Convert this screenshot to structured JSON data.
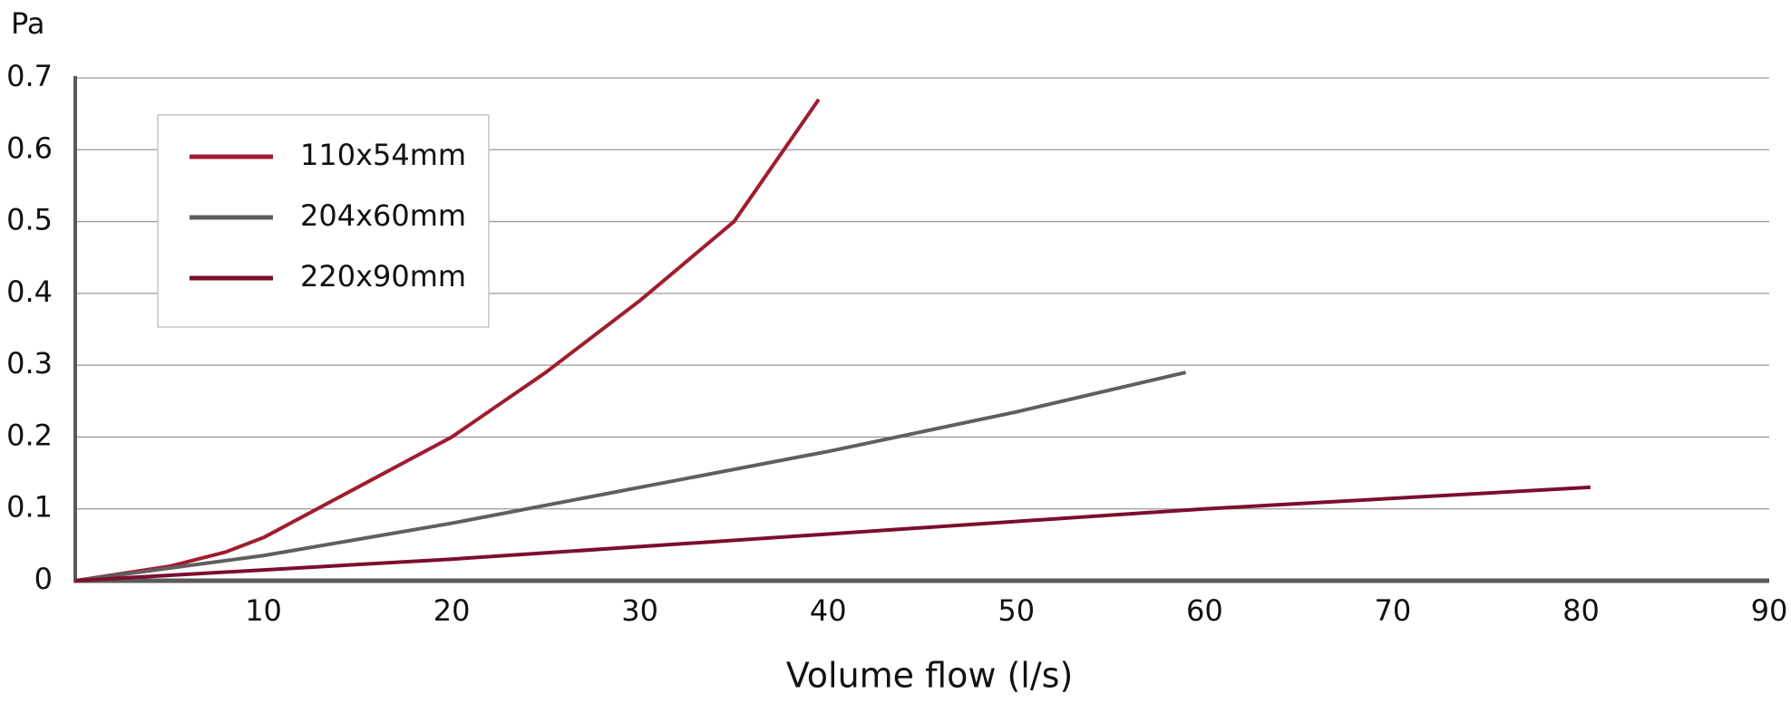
{
  "chart_data": {
    "type": "line",
    "y_label": "Pa",
    "x_label": "Volume flow (l/s)",
    "xlim": [
      0,
      90
    ],
    "xticks": [
      10,
      20,
      30,
      40,
      50,
      60,
      70,
      80,
      90
    ],
    "ylim": [
      0,
      0.7
    ],
    "yticks": [
      0,
      0.1,
      0.2,
      0.3,
      0.4,
      0.5,
      0.6,
      0.7
    ],
    "grid": true,
    "legend": "upper left",
    "series": [
      {
        "name": "110x54mm",
        "color": "#a01c2e",
        "x": [
          0,
          5,
          8,
          10,
          15,
          20,
          25,
          30,
          35,
          39.5
        ],
        "values": [
          0,
          0.02,
          0.04,
          0.06,
          0.13,
          0.2,
          0.29,
          0.39,
          0.5,
          0.67
        ]
      },
      {
        "name": "204x60mm",
        "color": "#5f5f5f",
        "x": [
          0,
          10,
          20,
          30,
          40,
          50,
          59
        ],
        "values": [
          0,
          0.035,
          0.08,
          0.13,
          0.18,
          0.235,
          0.29
        ]
      },
      {
        "name": "220x90mm",
        "color": "#7a0f2e",
        "x": [
          0,
          20,
          40,
          60,
          80.5
        ],
        "values": [
          0,
          0.03,
          0.065,
          0.1,
          0.13
        ]
      }
    ]
  }
}
